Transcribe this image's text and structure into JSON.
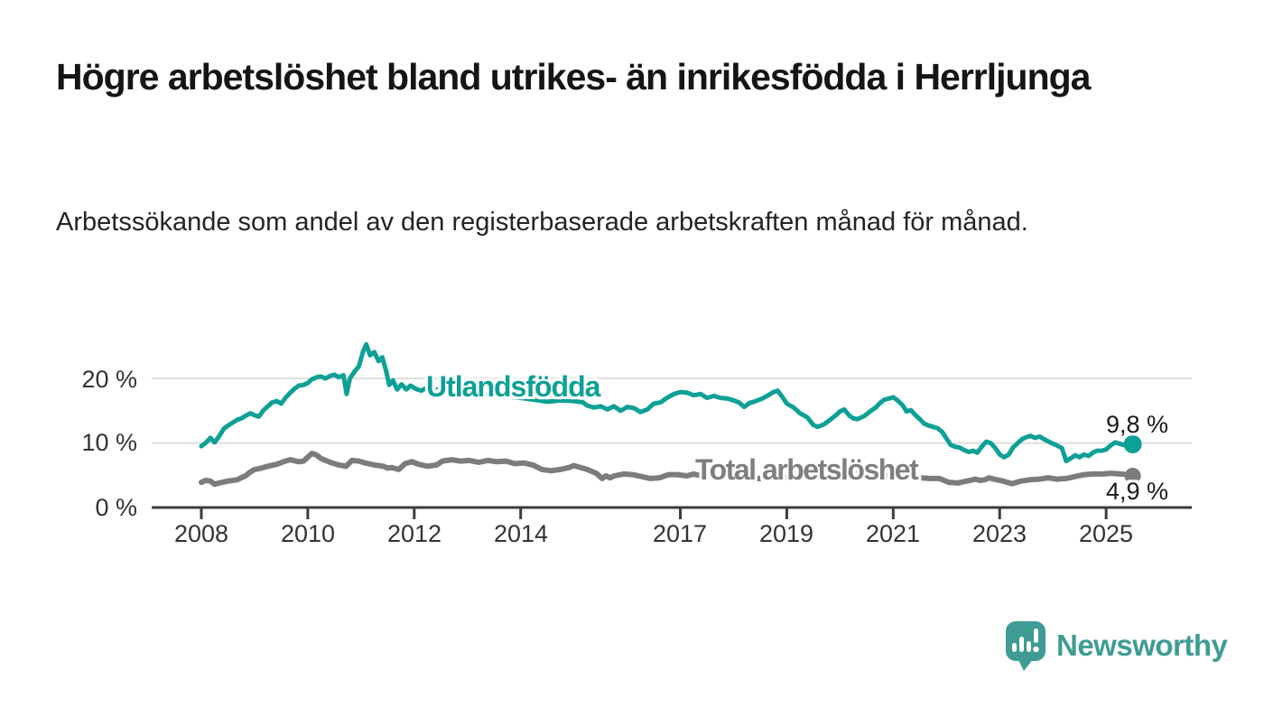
{
  "title": "Högre arbetslöshet bland utrikes- än inrikesfödda i Herrljunga",
  "subtitle": "Arbetssökande som andel av den registerbaserade arbetskraften månad för månad.",
  "branding": {
    "name": "Newsworthy",
    "logo_icon": "bar-chart-speech-bubble",
    "brand_color": "#3e9c94"
  },
  "chart_data": {
    "type": "line",
    "title": "Högre arbetslöshet bland utrikes- än inrikesfödda i Herrljunga",
    "xlabel": "",
    "ylabel": "Arbetssökande som andel av den registerbaserade arbetskraften",
    "unit": "%",
    "grid": true,
    "x_axis": {
      "ticks": [
        2008,
        2010,
        2012,
        2014,
        2017,
        2019,
        2021,
        2023,
        2025
      ],
      "tick_labels": [
        "2008",
        "2010",
        "2012",
        "2014",
        "2017",
        "2019",
        "2021",
        "2023",
        "2025"
      ],
      "range": [
        2007.1,
        2026.6
      ]
    },
    "y_axis": {
      "tick_labels": [
        "20 %",
        "10 %",
        "0 %"
      ],
      "tick_values": [
        20,
        10,
        0
      ],
      "grid_values": [
        20,
        10
      ],
      "range": [
        0,
        27
      ]
    },
    "colors": {
      "foreign_born_line": "#0ea096",
      "total_line": "#7c7c7e",
      "gridline": "#dedede",
      "axis": "#3d3d3d"
    },
    "series": [
      {
        "name": "Utlandsfödda",
        "color": "#0ea096",
        "end_label": "9,8 %",
        "end_value": 9.8,
        "points": [
          [
            2008.0,
            9.5
          ],
          [
            2008.08,
            10.0
          ],
          [
            2008.17,
            10.8
          ],
          [
            2008.25,
            10.1
          ],
          [
            2008.33,
            11.0
          ],
          [
            2008.42,
            12.2
          ],
          [
            2008.5,
            12.7
          ],
          [
            2008.58,
            13.1
          ],
          [
            2008.67,
            13.6
          ],
          [
            2008.75,
            13.8
          ],
          [
            2008.83,
            14.2
          ],
          [
            2008.92,
            14.6
          ],
          [
            2009.0,
            14.3
          ],
          [
            2009.08,
            14.1
          ],
          [
            2009.17,
            15.1
          ],
          [
            2009.25,
            15.7
          ],
          [
            2009.33,
            16.3
          ],
          [
            2009.42,
            16.5
          ],
          [
            2009.5,
            16.1
          ],
          [
            2009.58,
            17.0
          ],
          [
            2009.67,
            17.8
          ],
          [
            2009.75,
            18.4
          ],
          [
            2009.83,
            18.9
          ],
          [
            2009.92,
            19.0
          ],
          [
            2010.0,
            19.3
          ],
          [
            2010.08,
            19.9
          ],
          [
            2010.17,
            20.2
          ],
          [
            2010.25,
            20.3
          ],
          [
            2010.33,
            20.0
          ],
          [
            2010.42,
            20.4
          ],
          [
            2010.5,
            20.6
          ],
          [
            2010.58,
            20.2
          ],
          [
            2010.67,
            20.5
          ],
          [
            2010.73,
            17.6
          ],
          [
            2010.79,
            20.0
          ],
          [
            2010.88,
            21.1
          ],
          [
            2010.96,
            21.9
          ],
          [
            2011.04,
            24.2
          ],
          [
            2011.1,
            25.3
          ],
          [
            2011.17,
            23.6
          ],
          [
            2011.25,
            24.1
          ],
          [
            2011.33,
            22.7
          ],
          [
            2011.4,
            23.3
          ],
          [
            2011.47,
            21.2
          ],
          [
            2011.53,
            19.0
          ],
          [
            2011.6,
            19.7
          ],
          [
            2011.68,
            18.3
          ],
          [
            2011.76,
            19.1
          ],
          [
            2011.85,
            18.3
          ],
          [
            2011.93,
            18.9
          ],
          [
            2012.03,
            18.4
          ],
          [
            2012.13,
            18.1
          ],
          [
            2012.25,
            18.6
          ],
          [
            2012.35,
            17.9
          ],
          [
            2012.45,
            18.3
          ],
          [
            2012.55,
            18.7
          ],
          [
            2012.67,
            18.2
          ],
          [
            2012.83,
            18.4
          ],
          [
            2013.0,
            18.0
          ],
          [
            2013.25,
            17.6
          ],
          [
            2013.5,
            17.8
          ],
          [
            2013.75,
            17.2
          ],
          [
            2014.0,
            17.0
          ],
          [
            2014.25,
            16.7
          ],
          [
            2014.5,
            16.4
          ],
          [
            2014.75,
            16.6
          ],
          [
            2015.0,
            16.5
          ],
          [
            2015.17,
            16.3
          ],
          [
            2015.25,
            15.8
          ],
          [
            2015.38,
            15.5
          ],
          [
            2015.5,
            15.7
          ],
          [
            2015.63,
            15.2
          ],
          [
            2015.75,
            15.7
          ],
          [
            2015.88,
            15.0
          ],
          [
            2016.0,
            15.6
          ],
          [
            2016.13,
            15.4
          ],
          [
            2016.25,
            14.8
          ],
          [
            2016.38,
            15.2
          ],
          [
            2016.5,
            16.1
          ],
          [
            2016.63,
            16.3
          ],
          [
            2016.75,
            17.0
          ],
          [
            2016.88,
            17.6
          ],
          [
            2017.0,
            17.9
          ],
          [
            2017.13,
            17.8
          ],
          [
            2017.25,
            17.4
          ],
          [
            2017.38,
            17.6
          ],
          [
            2017.5,
            17.0
          ],
          [
            2017.63,
            17.3
          ],
          [
            2017.75,
            17.0
          ],
          [
            2017.88,
            16.9
          ],
          [
            2018.0,
            16.6
          ],
          [
            2018.1,
            16.3
          ],
          [
            2018.2,
            15.6
          ],
          [
            2018.3,
            16.2
          ],
          [
            2018.42,
            16.5
          ],
          [
            2018.54,
            16.9
          ],
          [
            2018.63,
            17.3
          ],
          [
            2018.75,
            17.9
          ],
          [
            2018.83,
            18.1
          ],
          [
            2018.92,
            17.1
          ],
          [
            2019.0,
            16.1
          ],
          [
            2019.13,
            15.5
          ],
          [
            2019.25,
            14.6
          ],
          [
            2019.38,
            14.0
          ],
          [
            2019.5,
            12.8
          ],
          [
            2019.58,
            12.5
          ],
          [
            2019.7,
            12.9
          ],
          [
            2019.83,
            13.7
          ],
          [
            2019.92,
            14.3
          ],
          [
            2020.0,
            14.9
          ],
          [
            2020.08,
            15.2
          ],
          [
            2020.17,
            14.3
          ],
          [
            2020.25,
            13.8
          ],
          [
            2020.33,
            13.7
          ],
          [
            2020.46,
            14.2
          ],
          [
            2020.58,
            15.0
          ],
          [
            2020.67,
            15.5
          ],
          [
            2020.75,
            16.2
          ],
          [
            2020.83,
            16.7
          ],
          [
            2020.92,
            16.9
          ],
          [
            2021.0,
            17.1
          ],
          [
            2021.08,
            16.6
          ],
          [
            2021.17,
            15.9
          ],
          [
            2021.25,
            14.9
          ],
          [
            2021.33,
            15.1
          ],
          [
            2021.42,
            14.3
          ],
          [
            2021.5,
            13.7
          ],
          [
            2021.58,
            13.0
          ],
          [
            2021.67,
            12.7
          ],
          [
            2021.75,
            12.5
          ],
          [
            2021.83,
            12.3
          ],
          [
            2021.92,
            11.7
          ],
          [
            2022.0,
            10.7
          ],
          [
            2022.08,
            9.7
          ],
          [
            2022.17,
            9.4
          ],
          [
            2022.25,
            9.3
          ],
          [
            2022.33,
            8.9
          ],
          [
            2022.42,
            8.6
          ],
          [
            2022.5,
            8.8
          ],
          [
            2022.58,
            8.5
          ],
          [
            2022.67,
            9.5
          ],
          [
            2022.75,
            10.2
          ],
          [
            2022.83,
            10.0
          ],
          [
            2022.92,
            9.2
          ],
          [
            2023.0,
            8.2
          ],
          [
            2023.08,
            7.8
          ],
          [
            2023.17,
            8.2
          ],
          [
            2023.25,
            9.3
          ],
          [
            2023.42,
            10.6
          ],
          [
            2023.5,
            10.9
          ],
          [
            2023.58,
            11.1
          ],
          [
            2023.67,
            10.8
          ],
          [
            2023.75,
            11.0
          ],
          [
            2023.83,
            10.6
          ],
          [
            2023.92,
            10.2
          ],
          [
            2024.0,
            9.9
          ],
          [
            2024.08,
            9.6
          ],
          [
            2024.17,
            9.2
          ],
          [
            2024.25,
            7.2
          ],
          [
            2024.33,
            7.6
          ],
          [
            2024.42,
            8.1
          ],
          [
            2024.5,
            7.8
          ],
          [
            2024.58,
            8.2
          ],
          [
            2024.67,
            8.0
          ],
          [
            2024.75,
            8.5
          ],
          [
            2024.83,
            8.8
          ],
          [
            2024.92,
            8.8
          ],
          [
            2025.0,
            9.0
          ],
          [
            2025.08,
            9.6
          ],
          [
            2025.17,
            10.1
          ],
          [
            2025.25,
            9.9
          ],
          [
            2025.33,
            9.7
          ],
          [
            2025.42,
            10.1
          ],
          [
            2025.5,
            9.8
          ]
        ]
      },
      {
        "name": "Total arbetslöshet",
        "color": "#7c7c7e",
        "end_label": "4,9 %",
        "end_value": 4.9,
        "points": [
          [
            2008.0,
            3.9
          ],
          [
            2008.08,
            4.2
          ],
          [
            2008.17,
            4.1
          ],
          [
            2008.25,
            3.6
          ],
          [
            2008.33,
            3.8
          ],
          [
            2008.5,
            4.1
          ],
          [
            2008.67,
            4.3
          ],
          [
            2008.83,
            4.9
          ],
          [
            2008.92,
            5.5
          ],
          [
            2009.0,
            5.9
          ],
          [
            2009.08,
            6.0
          ],
          [
            2009.25,
            6.4
          ],
          [
            2009.42,
            6.7
          ],
          [
            2009.58,
            7.2
          ],
          [
            2009.67,
            7.4
          ],
          [
            2009.83,
            7.1
          ],
          [
            2009.92,
            7.2
          ],
          [
            2010.08,
            8.4
          ],
          [
            2010.17,
            8.1
          ],
          [
            2010.25,
            7.6
          ],
          [
            2010.42,
            7.0
          ],
          [
            2010.58,
            6.6
          ],
          [
            2010.72,
            6.4
          ],
          [
            2010.83,
            7.3
          ],
          [
            2010.96,
            7.2
          ],
          [
            2011.08,
            6.9
          ],
          [
            2011.25,
            6.6
          ],
          [
            2011.42,
            6.4
          ],
          [
            2011.5,
            6.1
          ],
          [
            2011.58,
            6.2
          ],
          [
            2011.71,
            5.9
          ],
          [
            2011.83,
            6.8
          ],
          [
            2011.96,
            7.1
          ],
          [
            2012.08,
            6.7
          ],
          [
            2012.25,
            6.4
          ],
          [
            2012.42,
            6.6
          ],
          [
            2012.53,
            7.2
          ],
          [
            2012.7,
            7.4
          ],
          [
            2012.87,
            7.2
          ],
          [
            2013.04,
            7.3
          ],
          [
            2013.21,
            7.0
          ],
          [
            2013.38,
            7.3
          ],
          [
            2013.55,
            7.1
          ],
          [
            2013.72,
            7.2
          ],
          [
            2013.89,
            6.8
          ],
          [
            2014.06,
            6.9
          ],
          [
            2014.23,
            6.6
          ],
          [
            2014.4,
            5.9
          ],
          [
            2014.57,
            5.7
          ],
          [
            2014.74,
            5.9
          ],
          [
            2014.91,
            6.2
          ],
          [
            2015.0,
            6.5
          ],
          [
            2015.08,
            6.3
          ],
          [
            2015.25,
            5.9
          ],
          [
            2015.42,
            5.3
          ],
          [
            2015.53,
            4.5
          ],
          [
            2015.6,
            4.9
          ],
          [
            2015.68,
            4.6
          ],
          [
            2015.76,
            4.9
          ],
          [
            2015.93,
            5.2
          ],
          [
            2016.1,
            5.1
          ],
          [
            2016.27,
            4.8
          ],
          [
            2016.44,
            4.5
          ],
          [
            2016.61,
            4.6
          ],
          [
            2016.78,
            5.1
          ],
          [
            2016.95,
            5.1
          ],
          [
            2017.12,
            4.9
          ],
          [
            2017.25,
            5.2
          ],
          [
            2017.4,
            4.9
          ],
          [
            2017.6,
            4.8
          ],
          [
            2017.8,
            4.7
          ],
          [
            2018.0,
            4.6
          ],
          [
            2018.25,
            4.4
          ],
          [
            2018.5,
            4.5
          ],
          [
            2018.75,
            4.6
          ],
          [
            2019.0,
            4.7
          ],
          [
            2019.25,
            4.5
          ],
          [
            2019.5,
            4.7
          ],
          [
            2019.75,
            5.0
          ],
          [
            2020.0,
            5.2
          ],
          [
            2020.25,
            5.4
          ],
          [
            2020.5,
            5.3
          ],
          [
            2020.75,
            5.1
          ],
          [
            2021.0,
            5.0
          ],
          [
            2021.25,
            4.8
          ],
          [
            2021.5,
            4.6
          ],
          [
            2021.7,
            4.5
          ],
          [
            2021.87,
            4.5
          ],
          [
            2022.04,
            3.9
          ],
          [
            2022.21,
            3.8
          ],
          [
            2022.38,
            4.1
          ],
          [
            2022.55,
            4.4
          ],
          [
            2022.63,
            4.2
          ],
          [
            2022.72,
            4.3
          ],
          [
            2022.8,
            4.6
          ],
          [
            2022.89,
            4.4
          ],
          [
            2023.06,
            4.1
          ],
          [
            2023.23,
            3.7
          ],
          [
            2023.4,
            4.1
          ],
          [
            2023.57,
            4.3
          ],
          [
            2023.74,
            4.4
          ],
          [
            2023.91,
            4.6
          ],
          [
            2024.08,
            4.4
          ],
          [
            2024.25,
            4.5
          ],
          [
            2024.42,
            4.8
          ],
          [
            2024.59,
            5.1
          ],
          [
            2024.76,
            5.2
          ],
          [
            2024.93,
            5.2
          ],
          [
            2025.1,
            5.3
          ],
          [
            2025.27,
            5.2
          ],
          [
            2025.4,
            5.1
          ],
          [
            2025.5,
            4.9
          ]
        ]
      }
    ],
    "legend_position": "inline-labels"
  }
}
